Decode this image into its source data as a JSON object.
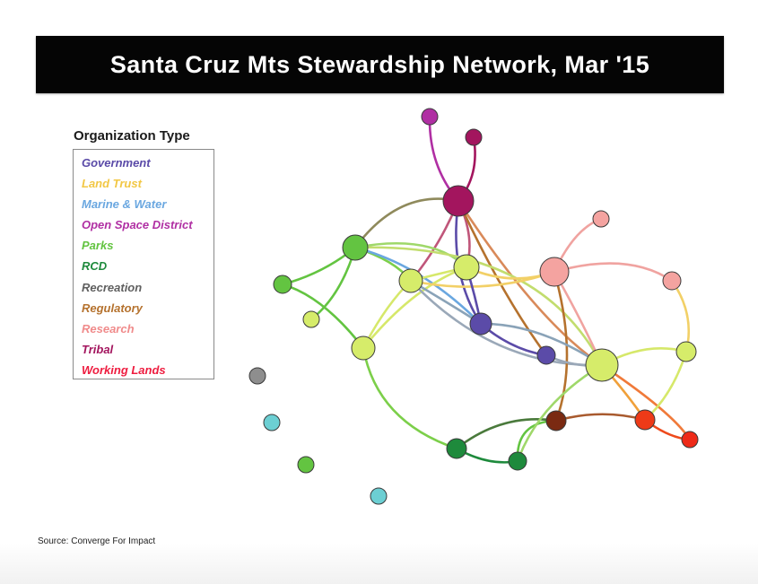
{
  "title": "Santa Cruz Mts Stewardship Network, Mar '15",
  "legend": {
    "title": "Organization Type",
    "items": [
      {
        "label": "Government",
        "color": "#5b4ba8"
      },
      {
        "label": "Land Trust",
        "color": "#f2c744"
      },
      {
        "label": "Marine & Water",
        "color": "#6aa7e0"
      },
      {
        "label": "Open Space District",
        "color": "#b02fa3"
      },
      {
        "label": "Parks",
        "color": "#63c441"
      },
      {
        "label": "RCD",
        "color": "#1e8a3c"
      },
      {
        "label": "Recreation",
        "color": "#5f5f5f"
      },
      {
        "label": "Regulatory",
        "color": "#b5722e"
      },
      {
        "label": "Research",
        "color": "#f08b8b"
      },
      {
        "label": "Tribal",
        "color": "#a3155e"
      },
      {
        "label": "Working Lands",
        "color": "#ee1c3f"
      }
    ]
  },
  "source": "Source: Converge For Impact"
}
